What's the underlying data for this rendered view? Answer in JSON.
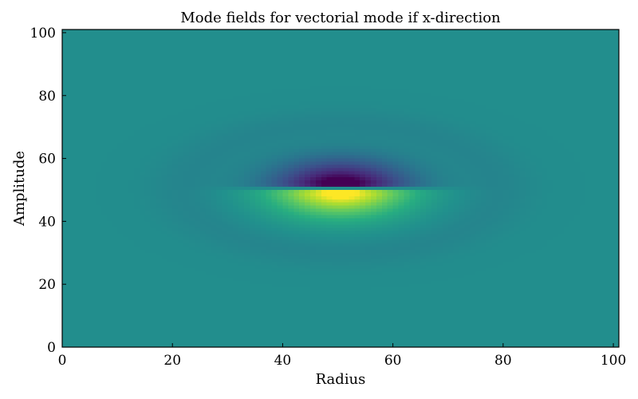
{
  "chart_data": {
    "type": "heatmap",
    "title": "Mode fields for vectorial mode if x-direction",
    "xlabel": "Radius",
    "ylabel": "Amplitude",
    "xlim": [
      0,
      101
    ],
    "ylim": [
      0,
      101
    ],
    "xticks": [
      0,
      20,
      40,
      60,
      80,
      100
    ],
    "yticks": [
      0,
      20,
      40,
      60,
      80,
      100
    ],
    "colormap": "viridis",
    "grid": false,
    "field": {
      "description": "dipole-like mode field centered near (50.5, 50.5)",
      "center": [
        50.5,
        50.5
      ],
      "background_value": 0.49,
      "upper_lobe_minimum": 0.0,
      "lower_lobe_maximum": 1.0,
      "grid_size": [
        101,
        101
      ]
    }
  }
}
